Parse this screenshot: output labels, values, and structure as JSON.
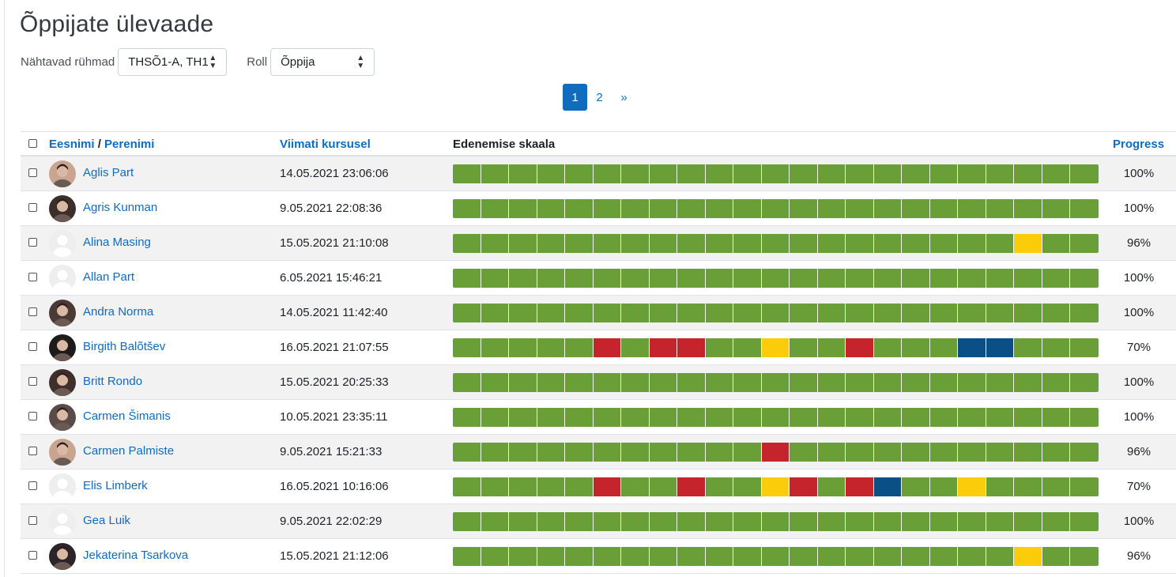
{
  "page_title": "Õppijate ülevaade",
  "filters": {
    "groups_label": "Nähtavad rühmad",
    "groups_value": "THSÕ1-A, TH1",
    "role_label": "Roll",
    "role_value": "Õppija"
  },
  "pagination": {
    "pages": [
      "1",
      "2"
    ],
    "next": "»",
    "current": "1"
  },
  "columns": {
    "first_name": "Eesnimi",
    "separator": "/",
    "last_name": "Perenimi",
    "last_access": "Viimati kursusel",
    "scale": "Edenemise skaala",
    "progress": "Progress"
  },
  "status_colors": {
    "G": "#6a9f37",
    "R": "#c5242c",
    "Y": "#fbcc0a",
    "B": "#0a4f86"
  },
  "students": [
    {
      "name": "Aglis Part",
      "last_access": "14.05.2021 23:06:06",
      "progress": "100%",
      "avatar": "photo",
      "scale": "GGGGGGGGGGGGGGGGGGGGGGG"
    },
    {
      "name": "Agris Kunman",
      "last_access": "9.05.2021 22:08:36",
      "progress": "100%",
      "avatar": "photo",
      "scale": "GGGGGGGGGGGGGGGGGGGGGGG"
    },
    {
      "name": "Alina Masing",
      "last_access": "15.05.2021 21:10:08",
      "progress": "96%",
      "avatar": "default",
      "scale": "GGGGGGGGGGGGGGGGGGGGYGG"
    },
    {
      "name": "Allan Part",
      "last_access": "6.05.2021 15:46:21",
      "progress": "100%",
      "avatar": "default",
      "scale": "GGGGGGGGGGGGGGGGGGGGGGG"
    },
    {
      "name": "Andra Norma",
      "last_access": "14.05.2021 11:42:40",
      "progress": "100%",
      "avatar": "photo",
      "scale": "GGGGGGGGGGGGGGGGGGGGGGG"
    },
    {
      "name": "Birgith Balõtšev",
      "last_access": "16.05.2021 21:07:55",
      "progress": "70%",
      "avatar": "photo",
      "scale": "GGGGGRGRRGGYGGRGGGBBGGG"
    },
    {
      "name": "Britt Rondo",
      "last_access": "15.05.2021 20:25:33",
      "progress": "100%",
      "avatar": "photo",
      "scale": "GGGGGGGGGGGGGGGGGGGGGGG"
    },
    {
      "name": "Carmen Šimanis",
      "last_access": "10.05.2021 23:35:11",
      "progress": "100%",
      "avatar": "photo",
      "scale": "GGGGGGGGGGGGGGGGGGGGGGG"
    },
    {
      "name": "Carmen Palmiste",
      "last_access": "9.05.2021 15:21:33",
      "progress": "96%",
      "avatar": "photo",
      "scale": "GGGGGGGGGGGRGGGGGGGGGGG"
    },
    {
      "name": "Elis Limberk",
      "last_access": "16.05.2021 10:16:06",
      "progress": "70%",
      "avatar": "default",
      "scale": "GGGGGRGGRGGYRGRBGGYGGGG"
    },
    {
      "name": "Gea Luik",
      "last_access": "9.05.2021 22:02:29",
      "progress": "100%",
      "avatar": "default",
      "scale": "GGGGGGGGGGGGGGGGGGGGGGG"
    },
    {
      "name": "Jekaterina Tsarkova",
      "last_access": "15.05.2021 21:12:06",
      "progress": "96%",
      "avatar": "photo",
      "scale": "GGGGGGGGGGGGGGGGGGGGYGG"
    }
  ]
}
